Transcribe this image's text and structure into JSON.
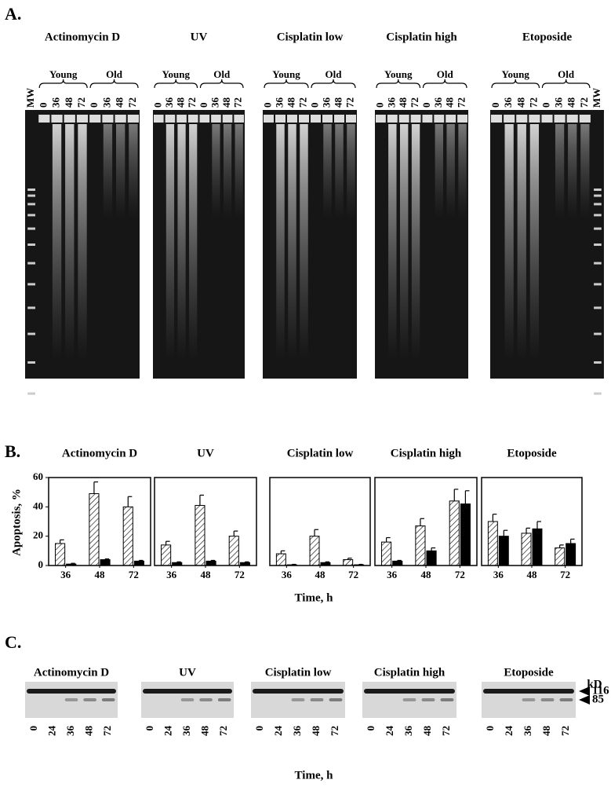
{
  "panel_a": {
    "label": "A.",
    "gels": [
      {
        "title": "Actinomycin D",
        "groups": [
          "Young",
          "Old"
        ],
        "lanes": [
          "MW",
          0,
          36,
          48,
          72,
          0,
          36,
          48,
          72
        ]
      },
      {
        "title": "UV",
        "groups": [
          "Young",
          "Old"
        ],
        "lanes": [
          0,
          36,
          48,
          72,
          0,
          36,
          48,
          72
        ]
      },
      {
        "title": "Cisplatin low",
        "groups": [
          "Young",
          "Old"
        ],
        "lanes": [
          0,
          36,
          48,
          72,
          0,
          36,
          48,
          72
        ]
      },
      {
        "title": "Cisplatin high",
        "groups": [
          "Young",
          "Old"
        ],
        "lanes": [
          0,
          36,
          48,
          72,
          0,
          36,
          48,
          72
        ]
      },
      {
        "title": "Etoposide",
        "groups": [
          "Young",
          "Old"
        ],
        "lanes": [
          0,
          36,
          48,
          72,
          0,
          36,
          48,
          72,
          "MW"
        ]
      }
    ]
  },
  "panel_b": {
    "label": "B.",
    "ylabel": "Apoptosis, %",
    "xlabel": "Time, h"
  },
  "chart_data": [
    {
      "type": "bar",
      "title": "Actinomycin D",
      "categories": [
        "36",
        "48",
        "72"
      ],
      "ylim": [
        0,
        60
      ],
      "yticks": [
        0,
        20,
        40,
        60
      ],
      "series": [
        {
          "color": "#ffffff",
          "pattern": "hatch",
          "values": [
            15,
            49,
            40
          ],
          "errors": [
            2.5,
            8,
            7
          ]
        },
        {
          "color": "#000000",
          "values": [
            1,
            4,
            3
          ],
          "errors": [
            0.5,
            0.5,
            0.5
          ]
        }
      ]
    },
    {
      "type": "bar",
      "title": "UV",
      "categories": [
        "36",
        "48",
        "72"
      ],
      "ylim": [
        0,
        60
      ],
      "series": [
        {
          "color": "#ffffff",
          "pattern": "hatch",
          "values": [
            14,
            41,
            20
          ],
          "errors": [
            2.5,
            7,
            3.5
          ]
        },
        {
          "color": "#000000",
          "values": [
            2,
            3,
            2
          ],
          "errors": [
            0.5,
            0.5,
            0.5
          ]
        }
      ]
    },
    {
      "type": "bar",
      "title": "Cisplatin low",
      "categories": [
        "36",
        "48",
        "72"
      ],
      "ylim": [
        0,
        60
      ],
      "series": [
        {
          "color": "#ffffff",
          "pattern": "hatch",
          "values": [
            8,
            20,
            4
          ],
          "errors": [
            2,
            4.5,
            1
          ]
        },
        {
          "color": "#000000",
          "values": [
            0.5,
            2,
            0.5
          ],
          "errors": [
            0.3,
            0.5,
            0.3
          ]
        }
      ]
    },
    {
      "type": "bar",
      "title": "Cisplatin high",
      "categories": [
        "36",
        "48",
        "72"
      ],
      "ylim": [
        0,
        60
      ],
      "series": [
        {
          "color": "#ffffff",
          "pattern": "hatch",
          "values": [
            16,
            27,
            44
          ],
          "errors": [
            3,
            5,
            8
          ]
        },
        {
          "color": "#000000",
          "values": [
            3,
            10,
            42
          ],
          "errors": [
            0.5,
            2,
            9
          ]
        }
      ]
    },
    {
      "type": "bar",
      "title": "Etoposide",
      "categories": [
        "36",
        "48",
        "72"
      ],
      "ylim": [
        0,
        60
      ],
      "series": [
        {
          "color": "#ffffff",
          "pattern": "hatch",
          "values": [
            30,
            22,
            12
          ],
          "errors": [
            5,
            3.5,
            2
          ]
        },
        {
          "color": "#000000",
          "values": [
            20,
            25,
            15
          ],
          "errors": [
            4,
            5,
            3
          ]
        }
      ]
    }
  ],
  "panel_c": {
    "label": "C.",
    "xlabel": "Time, h",
    "unit": "kD",
    "markers": [
      116,
      85
    ],
    "blots": [
      {
        "title": "Actinomycin D",
        "lanes": [
          0,
          24,
          36,
          48,
          72
        ]
      },
      {
        "title": "UV",
        "lanes": [
          0,
          24,
          36,
          48,
          72
        ]
      },
      {
        "title": "Cisplatin low",
        "lanes": [
          0,
          24,
          36,
          48,
          72
        ]
      },
      {
        "title": "Cisplatin high",
        "lanes": [
          0,
          24,
          36,
          48,
          72
        ]
      },
      {
        "title": "Etoposide",
        "lanes": [
          0,
          24,
          36,
          48,
          72
        ]
      }
    ]
  }
}
